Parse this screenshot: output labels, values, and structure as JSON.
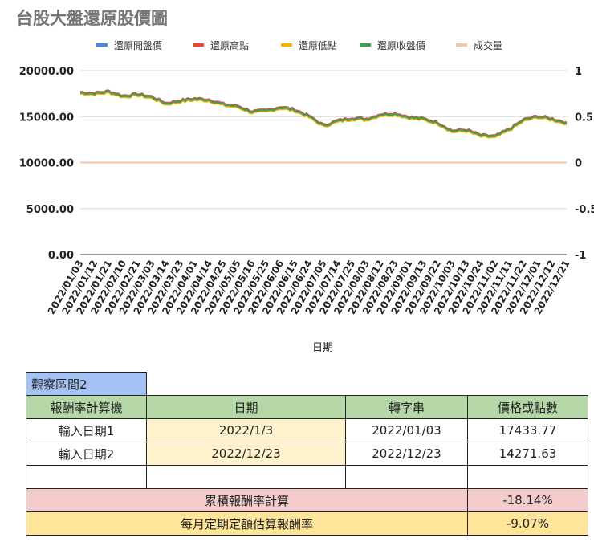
{
  "chart_data": {
    "type": "line",
    "title": "台股大盤還原股價圖",
    "xlabel": "日期",
    "legend": [
      {
        "name": "還原開盤價",
        "color": "#4a86e8"
      },
      {
        "name": "還原高點",
        "color": "#e84a3a"
      },
      {
        "name": "還原低點",
        "color": "#f4b400"
      },
      {
        "name": "還原收盤價",
        "color": "#43a047"
      },
      {
        "name": "成交量",
        "color": "#f7c6a8"
      }
    ],
    "y_left": {
      "ticks": [
        "20000.00",
        "15000.00",
        "10000.00",
        "5000.00",
        "0.00"
      ],
      "range": [
        0,
        20000
      ]
    },
    "y_right": {
      "ticks": [
        "1",
        "0.5",
        "0",
        "-0.5",
        "-1"
      ],
      "range": [
        -1,
        1
      ]
    },
    "x_ticks": [
      "2022/01/03",
      "2022/01/12",
      "2022/01/21",
      "2022/02/10",
      "2022/02/21",
      "2022/03/03",
      "2022/03/14",
      "2022/03/23",
      "2022/04/01",
      "2022/04/14",
      "2022/04/25",
      "2022/05/05",
      "2022/05/16",
      "2022/05/25",
      "2022/06/06",
      "2022/06/15",
      "2022/06/24",
      "2022/07/05",
      "2022/07/14",
      "2022/07/25",
      "2022/08/03",
      "2022/08/12",
      "2022/08/23",
      "2022/09/01",
      "2022/09/13",
      "2022/09/22",
      "2022/10/03",
      "2022/10/13",
      "2022/10/24",
      "2022/11/02",
      "2022/11/11",
      "2022/11/22",
      "2022/12/01",
      "2022/12/12",
      "2022/12/21"
    ],
    "close_series": [
      {
        "x": "2022/01/03",
        "y": 17600
      },
      {
        "x": "2022/01/12",
        "y": 17500
      },
      {
        "x": "2022/01/21",
        "y": 17700
      },
      {
        "x": "2022/02/10",
        "y": 17200
      },
      {
        "x": "2022/02/21",
        "y": 17400
      },
      {
        "x": "2022/03/03",
        "y": 17100
      },
      {
        "x": "2022/03/14",
        "y": 16400
      },
      {
        "x": "2022/03/23",
        "y": 16700
      },
      {
        "x": "2022/04/01",
        "y": 16900
      },
      {
        "x": "2022/04/14",
        "y": 16800
      },
      {
        "x": "2022/04/25",
        "y": 16300
      },
      {
        "x": "2022/05/05",
        "y": 16100
      },
      {
        "x": "2022/05/16",
        "y": 15500
      },
      {
        "x": "2022/05/25",
        "y": 15600
      },
      {
        "x": "2022/06/06",
        "y": 16000
      },
      {
        "x": "2022/06/15",
        "y": 15700
      },
      {
        "x": "2022/06/24",
        "y": 15000
      },
      {
        "x": "2022/07/05",
        "y": 14000
      },
      {
        "x": "2022/07/14",
        "y": 14500
      },
      {
        "x": "2022/07/25",
        "y": 14800
      },
      {
        "x": "2022/08/03",
        "y": 14700
      },
      {
        "x": "2022/08/12",
        "y": 15200
      },
      {
        "x": "2022/08/23",
        "y": 15300
      },
      {
        "x": "2022/09/01",
        "y": 14900
      },
      {
        "x": "2022/09/13",
        "y": 14700
      },
      {
        "x": "2022/09/22",
        "y": 14300
      },
      {
        "x": "2022/10/03",
        "y": 13400
      },
      {
        "x": "2022/10/13",
        "y": 13500
      },
      {
        "x": "2022/10/24",
        "y": 12900
      },
      {
        "x": "2022/11/02",
        "y": 12800
      },
      {
        "x": "2022/11/11",
        "y": 13600
      },
      {
        "x": "2022/11/22",
        "y": 14600
      },
      {
        "x": "2022/12/01",
        "y": 15000
      },
      {
        "x": "2022/12/12",
        "y": 14700
      },
      {
        "x": "2022/12/21",
        "y": 14300
      }
    ],
    "volume_series": {
      "name": "成交量",
      "y": 0
    }
  },
  "sheet": {
    "header_cell": "觀察區間2",
    "columns": [
      "報酬率計算機",
      "日期",
      "轉字串",
      "價格或點數"
    ],
    "rows": [
      [
        "輸入日期1",
        "2022/1/3",
        "2022/01/03",
        "17433.77"
      ],
      [
        "輸入日期2",
        "2022/12/23",
        "2022/12/23",
        "14271.63"
      ]
    ],
    "cum_label": "累積報酬率計算",
    "cum_value": "-18.14%",
    "monthly_label": "每月定期定額估算報酬率",
    "monthly_value": "-9.07%"
  }
}
